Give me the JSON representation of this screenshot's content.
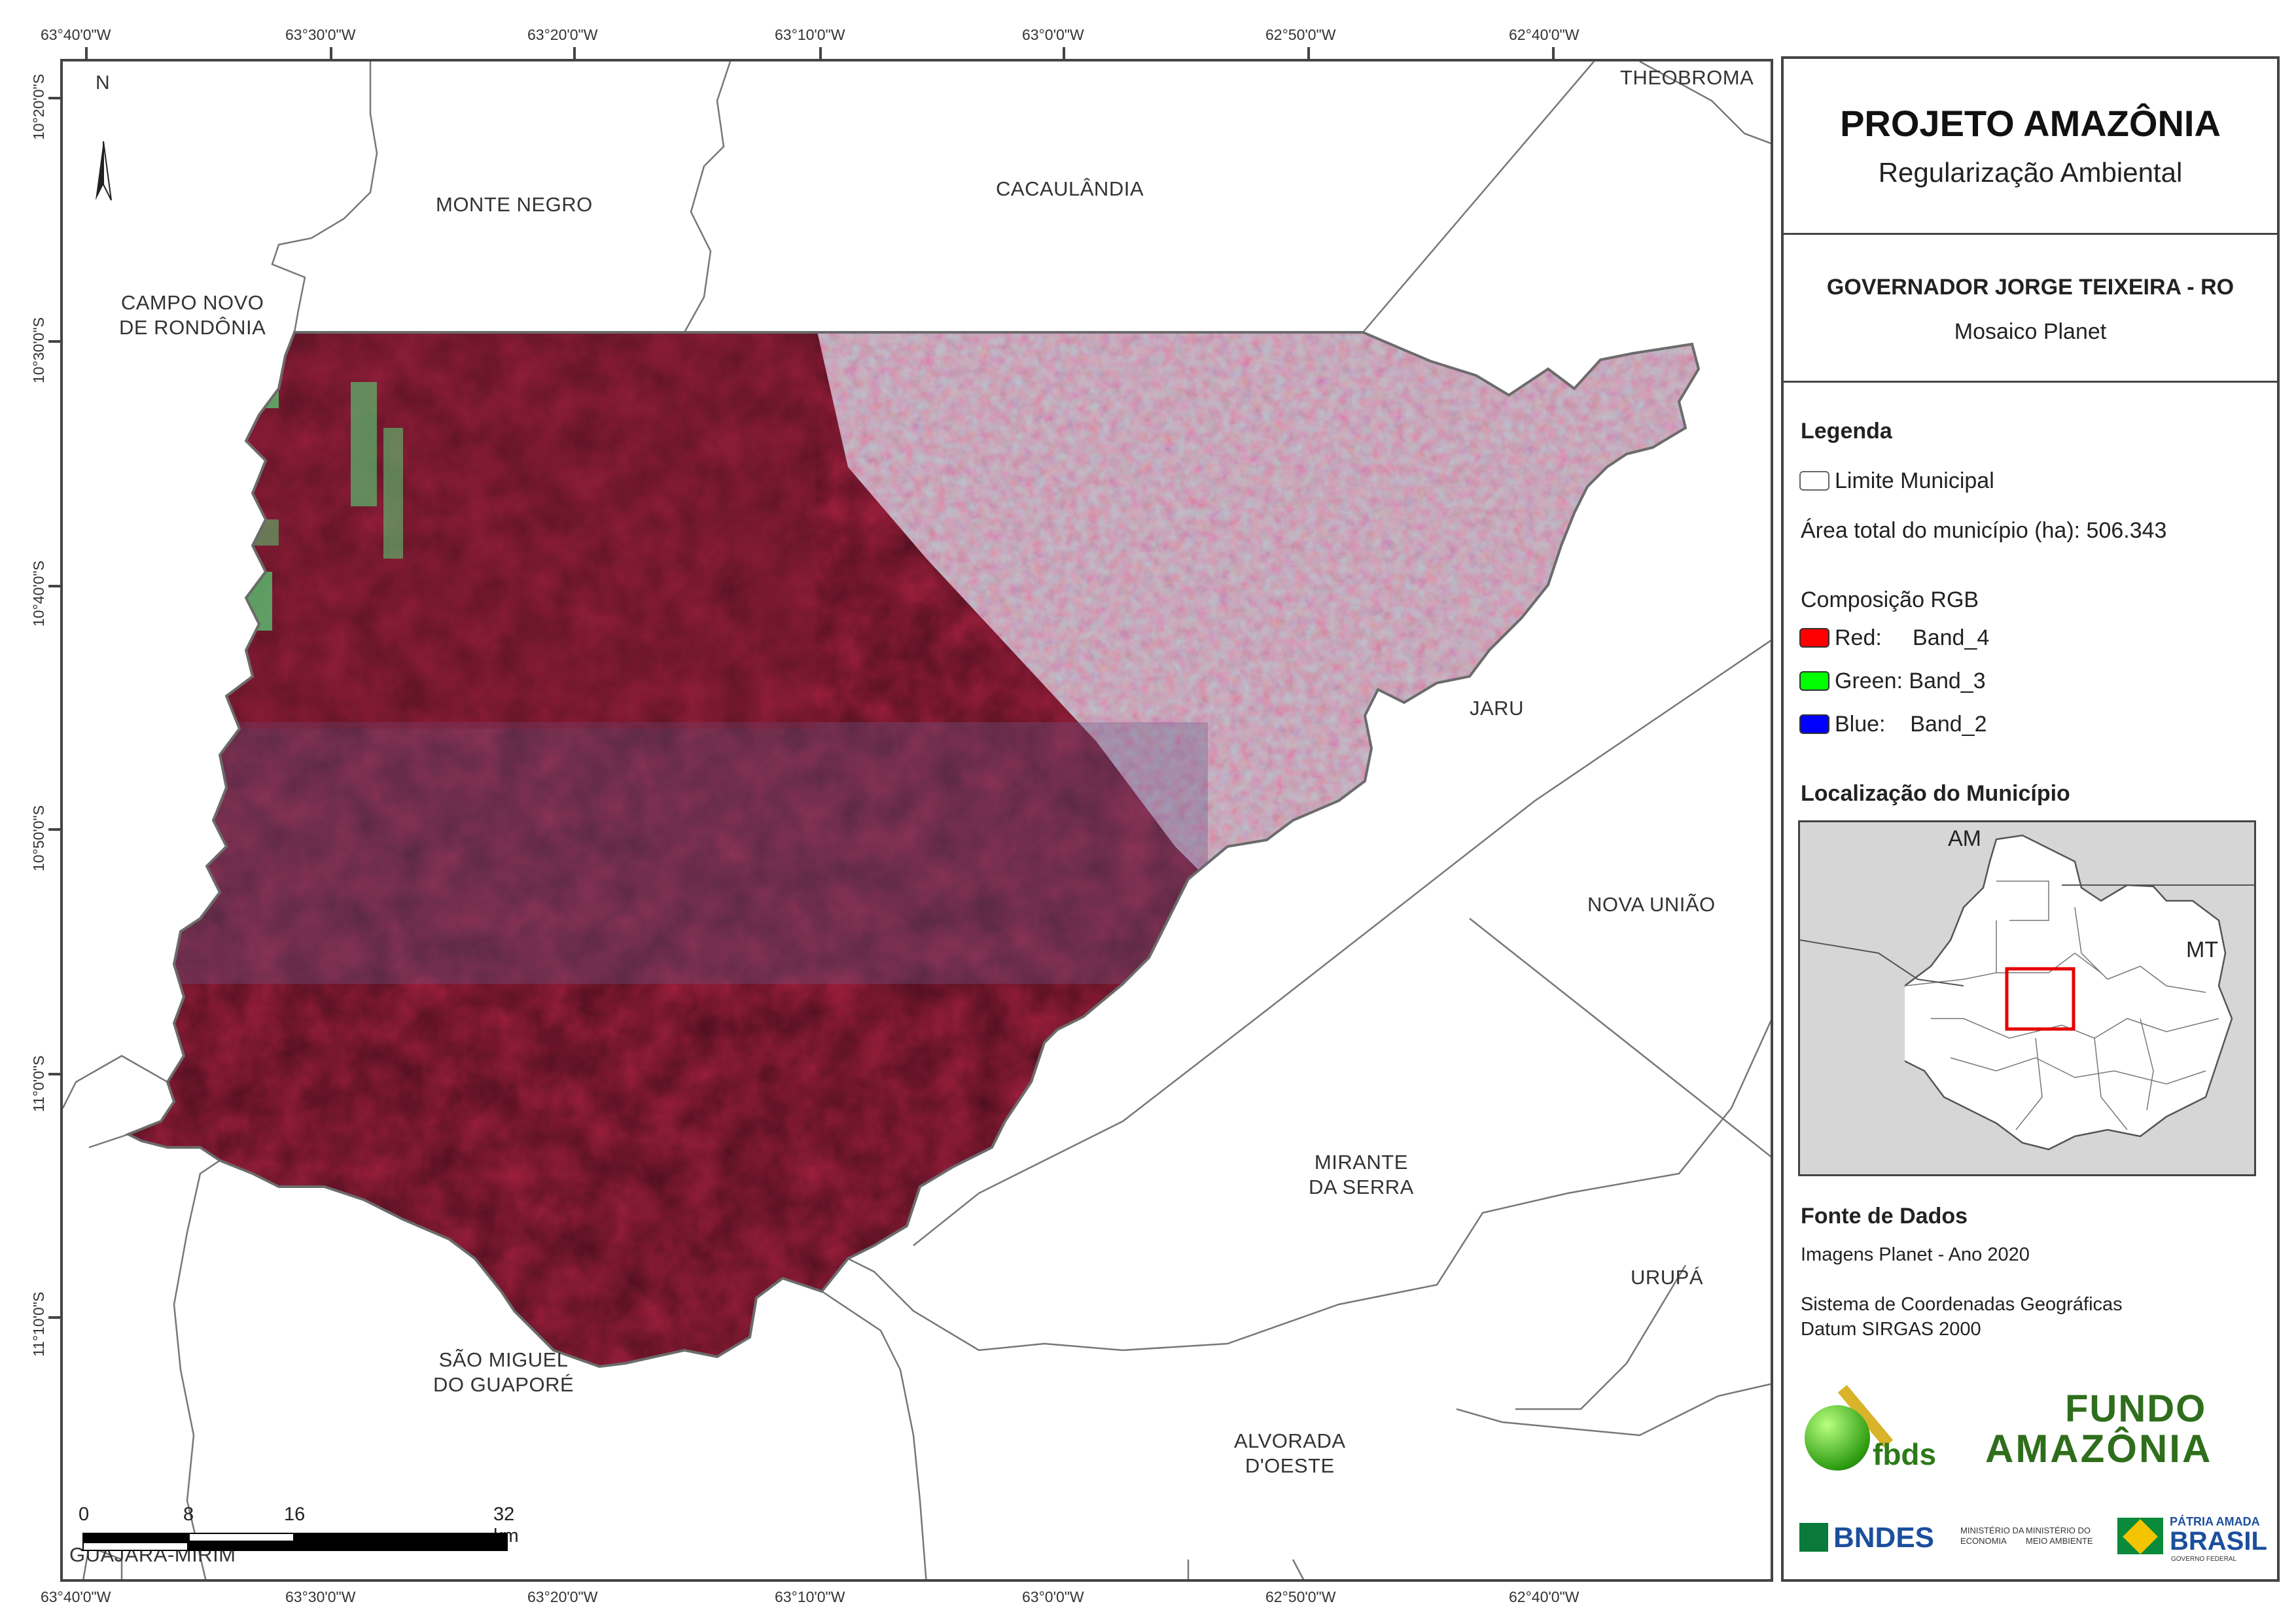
{
  "coordinates": {
    "top_longitudes": [
      "63°40'0\"W",
      "63°30'0\"W",
      "63°20'0\"W",
      "63°10'0\"W",
      "63°0'0\"W",
      "62°50'0\"W",
      "62°40'0\"W"
    ],
    "bottom_longitudes": [
      "63°40'0\"W",
      "63°30'0\"W",
      "63°20'0\"W",
      "63°10'0\"W",
      "63°0'0\"W",
      "62°50'0\"W",
      "62°40'0\"W"
    ],
    "latitudes": [
      "10°20'0\"S",
      "10°30'0\"S",
      "10°40'0\"S",
      "10°50'0\"S",
      "11°0'0\"S",
      "11°10'0\"S"
    ]
  },
  "municipalities": {
    "theobroma": "THEOBROMA",
    "monte_negro": "MONTE NEGRO",
    "cacaulandia": "CACAULÂNDIA",
    "campo_novo": "CAMPO NOVO\nDE RONDÔNIA",
    "jaru": "JARU",
    "nova_uniao": "NOVA UNIÃO",
    "mirante": "MIRANTE\nDA SERRA",
    "urupa": "URUPÁ",
    "sao_miguel": "SÃO MIGUEL\nDO GUAPORÉ",
    "alvorada": "ALVORADA\nD'OESTE",
    "guajara": "GUAJARÁ-MIRIM"
  },
  "north_arrow": "N",
  "scale_bar": {
    "labels": [
      "0",
      "8",
      "16",
      "32 km"
    ],
    "values_km": [
      0,
      8,
      16,
      32
    ]
  },
  "panel": {
    "title": "PROJETO AMAZÔNIA",
    "subtitle": "Regularização Ambiental",
    "municipality_title": "GOVERNADOR JORGE TEIXEIRA - RO",
    "mosaic": "Mosaico Planet",
    "legend": {
      "heading": "Legenda",
      "boundary_label": "Limite Municipal",
      "area_text": "Área total do município (ha): 506.343",
      "rgb_heading": "Composição RGB",
      "bands": [
        {
          "label": "Red:     Band_4",
          "color": "#ff0000"
        },
        {
          "label": "Green: Band_3",
          "color": "#00ff00"
        },
        {
          "label": "Blue:    Band_2",
          "color": "#0000ff"
        }
      ]
    },
    "location": {
      "heading": "Localização do Município",
      "label_am": "AM",
      "label_mt": "MT"
    },
    "sources": {
      "heading": "Fonte de Dados",
      "line1": "Imagens Planet - Ano 2020",
      "line2": "Sistema de Coordenadas Geográficas",
      "line3": "Datum SIRGAS 2000"
    },
    "logos": {
      "fbds": "fbds",
      "fundo_line1": "FUNDO",
      "fundo_line2": "AMAZÔNIA",
      "bndes": "BNDES",
      "min_economia": "MINISTÉRIO DA\nECONOMIA",
      "min_meio": "MINISTÉRIO DO\nMEIO AMBIENTE",
      "patria1": "PÁTRIA AMADA",
      "patria2": "BRASIL",
      "patria3": "GOVERNO FEDERAL"
    }
  },
  "colors": {
    "forest": "#a3203f",
    "forest_dark": "#7d1c33",
    "cleared": "#b8c7cf",
    "cleared_red": "#d8375f",
    "green_patch": "#57d77a",
    "boundary": "#6b6b6b"
  }
}
